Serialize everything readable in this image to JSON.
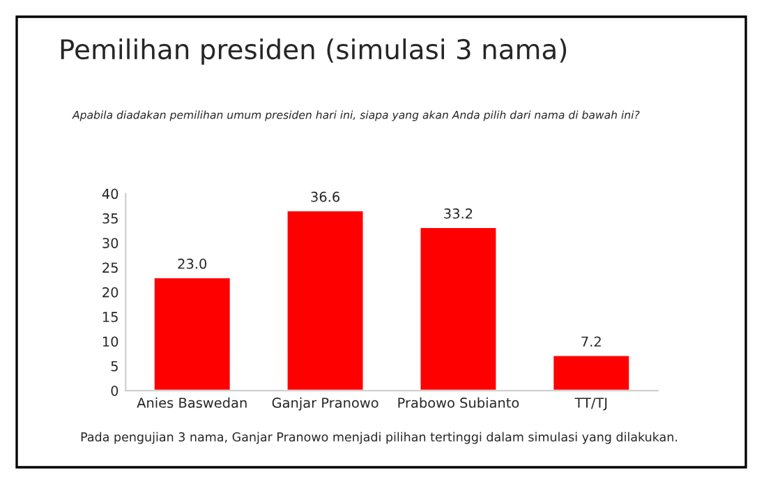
{
  "chart_data": {
    "type": "bar",
    "title": "Pemilihan presiden (simulasi 3 nama)",
    "subtitle": "Apabila diadakan pemilihan umum presiden hari ini, siapa yang akan Anda pilih dari nama di bawah ini?",
    "categories": [
      "Anies Baswedan",
      "Ganjar Pranowo",
      "Prabowo Subianto",
      "TT/TJ"
    ],
    "values": [
      23.0,
      36.6,
      33.2,
      7.2
    ],
    "value_labels": [
      "23.0",
      "36.6",
      "33.2",
      "7.2"
    ],
    "color": "#ff0000",
    "ylim": [
      0,
      40
    ],
    "yticks": [
      0,
      5,
      10,
      15,
      20,
      25,
      30,
      35,
      40
    ],
    "grid": false,
    "legend": false,
    "annotations": [
      "Pada pengujian 3 nama, Ganjar Pranowo menjadi pilihan tertinggi dalam simulasi yang dilakukan."
    ]
  }
}
